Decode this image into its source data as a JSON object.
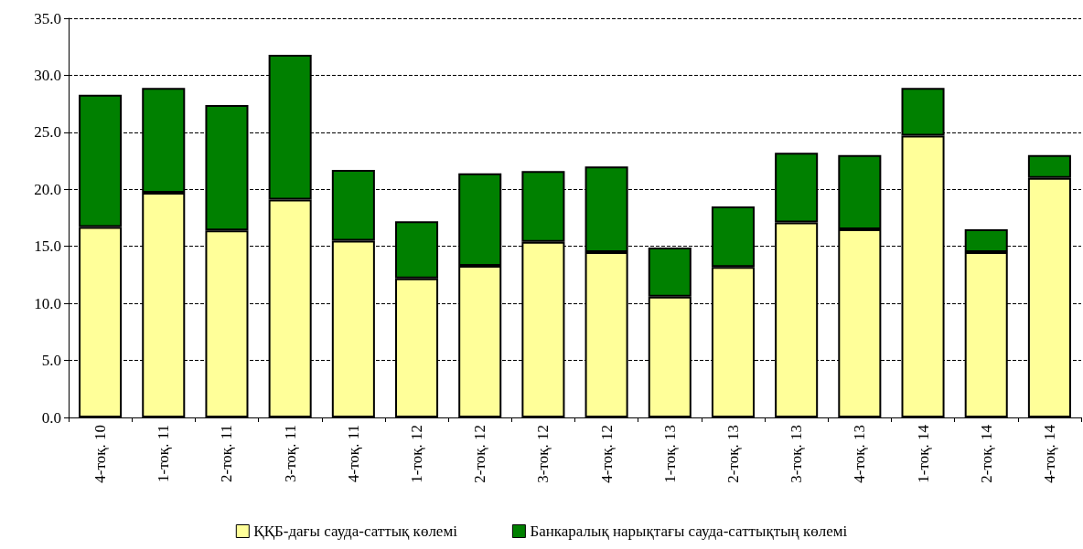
{
  "chart_data": {
    "type": "bar",
    "stacked": true,
    "categories": [
      "4-тоқ. 10",
      "1-тоқ. 11",
      "2-тоқ. 11",
      "3-тоқ. 11",
      "4-тоқ. 11",
      "1-тоқ. 12",
      "2-тоқ. 12",
      "3-тоқ. 12",
      "4-тоқ. 12",
      "1-тоқ. 13",
      "2-тоқ. 13",
      "3-тоқ. 13",
      "4-тоқ. 13",
      "1-тоқ. 14",
      "2-тоқ. 14",
      "4-тоқ. 14"
    ],
    "series": [
      {
        "name": "ҚҚБ-дағы сауда-саттық көлемі",
        "color": "#ffff99",
        "values": [
          16.7,
          19.7,
          16.4,
          19.1,
          15.5,
          12.2,
          13.3,
          15.4,
          14.5,
          10.6,
          13.2,
          17.1,
          16.5,
          24.7,
          14.5,
          21.0
        ]
      },
      {
        "name": "Банкаралық нарықтағы сауда-саттықтың көлемі",
        "color": "#008000",
        "values": [
          11.6,
          9.2,
          11.0,
          12.7,
          6.2,
          5.0,
          8.1,
          6.2,
          7.5,
          4.3,
          5.3,
          6.1,
          6.5,
          4.2,
          2.0,
          2.0
        ]
      }
    ],
    "ylim": [
      0,
      35
    ],
    "yticks": [
      {
        "value": 0,
        "label": "0.0"
      },
      {
        "value": 5,
        "label": "5.0"
      },
      {
        "value": 10,
        "label": "10.0"
      },
      {
        "value": 15,
        "label": "15.0"
      },
      {
        "value": 20,
        "label": "20.0"
      },
      {
        "value": 25,
        "label": "25.0"
      },
      {
        "value": 30,
        "label": "30.0"
      },
      {
        "value": 35,
        "label": "35.0"
      }
    ],
    "grid": "y",
    "legend": "bottom"
  }
}
